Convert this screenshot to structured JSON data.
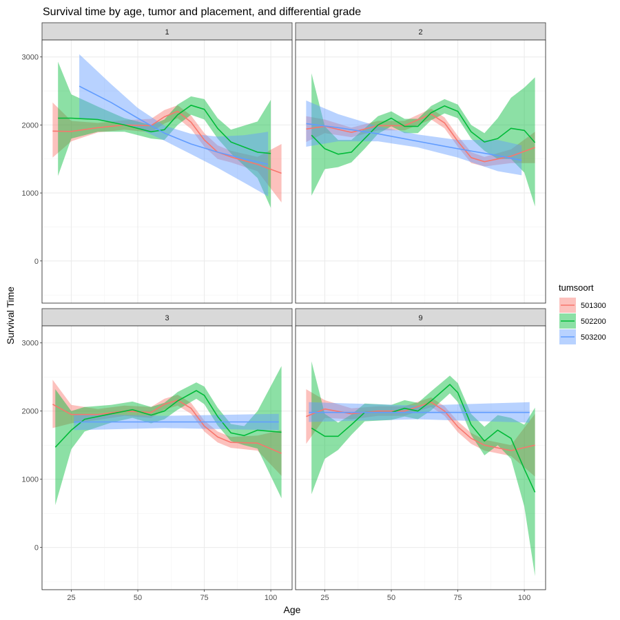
{
  "chart_data": {
    "type": "line",
    "title": "Survival time by age, tumor and placement, and differential grade",
    "xlabel": "Age",
    "ylabel": "Survival Time",
    "xlim": [
      14,
      108
    ],
    "ylim": [
      -620,
      3250
    ],
    "x_ticks": [
      25,
      50,
      75,
      100
    ],
    "y_ticks": [
      0,
      1000,
      2000,
      3000
    ],
    "grid": true,
    "legend": {
      "title": "tumsoort",
      "position": "right",
      "entries": [
        {
          "label": "501300",
          "color": "#F8766D"
        },
        {
          "label": "502200",
          "color": "#00BA38"
        },
        {
          "label": "503200",
          "color": "#619CFF"
        }
      ]
    },
    "panels": [
      {
        "label": "1",
        "series": [
          {
            "name": "501300",
            "color": "#F8766D",
            "points": [
              [
                18,
                1910,
                1520,
                2330
              ],
              [
                25,
                1905,
                1760,
                2060
              ],
              [
                35,
                1960,
                1890,
                2030
              ],
              [
                45,
                2000,
                1930,
                2070
              ],
              [
                55,
                1990,
                1890,
                2090
              ],
              [
                60,
                2120,
                2020,
                2220
              ],
              [
                65,
                2200,
                2100,
                2290
              ],
              [
                70,
                2040,
                1940,
                2140
              ],
              [
                75,
                1780,
                1680,
                1880
              ],
              [
                80,
                1600,
                1500,
                1700
              ],
              [
                85,
                1530,
                1450,
                1620
              ],
              [
                95,
                1420,
                1320,
                1530
              ],
              [
                104,
                1290,
                860,
                1720
              ]
            ]
          },
          {
            "name": "502200",
            "color": "#00BA38",
            "points": [
              [
                20,
                2100,
                1250,
                2930
              ],
              [
                25,
                2100,
                1800,
                2450
              ],
              [
                35,
                2080,
                1900,
                2270
              ],
              [
                45,
                2000,
                1900,
                2100
              ],
              [
                55,
                1900,
                1800,
                2000
              ],
              [
                60,
                1930,
                1780,
                2080
              ],
              [
                65,
                2150,
                2000,
                2300
              ],
              [
                70,
                2290,
                2150,
                2420
              ],
              [
                75,
                2230,
                2080,
                2380
              ],
              [
                80,
                1950,
                1800,
                2100
              ],
              [
                85,
                1750,
                1580,
                1930
              ],
              [
                95,
                1600,
                1220,
                2050
              ],
              [
                100,
                1580,
                780,
                2370
              ]
            ]
          },
          {
            "name": "503200",
            "color": "#619CFF",
            "points": [
              [
                28,
                2570,
                2100,
                3040
              ],
              [
                40,
                2330,
                2050,
                2600
              ],
              [
                50,
                2100,
                1950,
                2250
              ],
              [
                60,
                1880,
                1770,
                1990
              ],
              [
                70,
                1720,
                1570,
                1870
              ],
              [
                80,
                1600,
                1370,
                1830
              ],
              [
                90,
                1500,
                1150,
                1850
              ],
              [
                99,
                1420,
                950,
                1900
              ]
            ]
          }
        ]
      },
      {
        "label": "2",
        "series": [
          {
            "name": "501300",
            "color": "#F8766D",
            "points": [
              [
                18,
                1940,
                1750,
                2130
              ],
              [
                25,
                1980,
                1880,
                2080
              ],
              [
                35,
                1890,
                1820,
                1960
              ],
              [
                45,
                1990,
                1920,
                2060
              ],
              [
                55,
                1990,
                1920,
                2060
              ],
              [
                65,
                2160,
                2080,
                2240
              ],
              [
                70,
                2030,
                1950,
                2110
              ],
              [
                75,
                1760,
                1680,
                1840
              ],
              [
                80,
                1520,
                1440,
                1600
              ],
              [
                85,
                1460,
                1390,
                1530
              ],
              [
                95,
                1540,
                1440,
                1640
              ],
              [
                104,
                1670,
                1440,
                1900
              ]
            ]
          },
          {
            "name": "502200",
            "color": "#00BA38",
            "points": [
              [
                20,
                1850,
                960,
                2760
              ],
              [
                25,
                1650,
                1350,
                1980
              ],
              [
                30,
                1570,
                1380,
                1780
              ],
              [
                35,
                1600,
                1450,
                1780
              ],
              [
                40,
                1800,
                1650,
                1950
              ],
              [
                45,
                2000,
                1870,
                2130
              ],
              [
                50,
                2100,
                1980,
                2200
              ],
              [
                55,
                1980,
                1880,
                2090
              ],
              [
                60,
                1980,
                1880,
                2090
              ],
              [
                65,
                2180,
                2070,
                2280
              ],
              [
                70,
                2280,
                2170,
                2380
              ],
              [
                75,
                2200,
                2100,
                2300
              ],
              [
                80,
                1900,
                1800,
                2000
              ],
              [
                85,
                1750,
                1620,
                1880
              ],
              [
                90,
                1800,
                1500,
                2100
              ],
              [
                95,
                1950,
                1500,
                2400
              ],
              [
                100,
                1920,
                1300,
                2550
              ],
              [
                104,
                1740,
                800,
                2700
              ]
            ]
          },
          {
            "name": "503200",
            "color": "#619CFF",
            "points": [
              [
                18,
                2020,
                1680,
                2360
              ],
              [
                30,
                1960,
                1760,
                2160
              ],
              [
                45,
                1870,
                1760,
                1980
              ],
              [
                60,
                1760,
                1670,
                1860
              ],
              [
                75,
                1650,
                1520,
                1780
              ],
              [
                90,
                1550,
                1320,
                1780
              ],
              [
                99,
                1480,
                1260,
                1700
              ]
            ]
          }
        ]
      },
      {
        "label": "3",
        "series": [
          {
            "name": "501300",
            "color": "#F8766D",
            "points": [
              [
                18,
                2100,
                1750,
                2460
              ],
              [
                25,
                1950,
                1820,
                2090
              ],
              [
                35,
                1950,
                1870,
                2030
              ],
              [
                45,
                2000,
                1930,
                2080
              ],
              [
                55,
                1980,
                1900,
                2060
              ],
              [
                60,
                2100,
                2020,
                2180
              ],
              [
                65,
                2160,
                2080,
                2240
              ],
              [
                70,
                2040,
                1960,
                2120
              ],
              [
                75,
                1780,
                1700,
                1860
              ],
              [
                80,
                1620,
                1540,
                1700
              ],
              [
                85,
                1540,
                1460,
                1620
              ],
              [
                95,
                1530,
                1420,
                1640
              ],
              [
                104,
                1380,
                1050,
                1720
              ]
            ]
          },
          {
            "name": "502200",
            "color": "#00BA38",
            "points": [
              [
                19,
                1470,
                620,
                2320
              ],
              [
                25,
                1720,
                1440,
                2000
              ],
              [
                30,
                1880,
                1700,
                2060
              ],
              [
                40,
                1960,
                1830,
                2090
              ],
              [
                48,
                2020,
                1900,
                2140
              ],
              [
                55,
                1940,
                1820,
                2060
              ],
              [
                60,
                2000,
                1880,
                2120
              ],
              [
                65,
                2150,
                2020,
                2280
              ],
              [
                72,
                2300,
                2180,
                2420
              ],
              [
                75,
                2230,
                2100,
                2360
              ],
              [
                80,
                1920,
                1790,
                2050
              ],
              [
                85,
                1680,
                1560,
                1810
              ],
              [
                90,
                1640,
                1500,
                1780
              ],
              [
                95,
                1720,
                1450,
                2000
              ],
              [
                104,
                1690,
                720,
                2660
              ]
            ]
          },
          {
            "name": "503200",
            "color": "#619CFF",
            "points": [
              [
                26,
                1840,
                1720,
                1960
              ],
              [
                60,
                1840,
                1750,
                1930
              ],
              [
                103,
                1840,
                1720,
                1960
              ]
            ]
          }
        ]
      },
      {
        "label": "9",
        "series": [
          {
            "name": "501300",
            "color": "#F8766D",
            "points": [
              [
                18,
                1920,
                1520,
                2320
              ],
              [
                25,
                2030,
                1900,
                2160
              ],
              [
                35,
                1960,
                1880,
                2040
              ],
              [
                45,
                2000,
                1930,
                2070
              ],
              [
                55,
                2000,
                1930,
                2070
              ],
              [
                65,
                2130,
                2060,
                2200
              ],
              [
                70,
                2000,
                1930,
                2070
              ],
              [
                75,
                1770,
                1690,
                1850
              ],
              [
                80,
                1600,
                1520,
                1680
              ],
              [
                85,
                1500,
                1420,
                1580
              ],
              [
                95,
                1420,
                1340,
                1500
              ],
              [
                104,
                1500,
                1040,
                1960
              ]
            ]
          },
          {
            "name": "502200",
            "color": "#00BA38",
            "points": [
              [
                20,
                1750,
                780,
                2730
              ],
              [
                25,
                1630,
                1300,
                1960
              ],
              [
                30,
                1630,
                1430,
                1830
              ],
              [
                35,
                1800,
                1650,
                1950
              ],
              [
                40,
                1980,
                1850,
                2110
              ],
              [
                50,
                1980,
                1870,
                2090
              ],
              [
                55,
                2040,
                1920,
                2160
              ],
              [
                60,
                2000,
                1880,
                2120
              ],
              [
                65,
                2150,
                2010,
                2290
              ],
              [
                72,
                2390,
                2260,
                2520
              ],
              [
                75,
                2270,
                2130,
                2410
              ],
              [
                80,
                1800,
                1650,
                1960
              ],
              [
                85,
                1560,
                1350,
                1770
              ],
              [
                90,
                1720,
                1500,
                1940
              ],
              [
                95,
                1600,
                1300,
                1900
              ],
              [
                100,
                1150,
                600,
                1800
              ],
              [
                104,
                810,
                -420,
                2050
              ]
            ]
          },
          {
            "name": "503200",
            "color": "#619CFF",
            "points": [
              [
                19,
                1980,
                1840,
                2130
              ],
              [
                60,
                1980,
                1880,
                2080
              ],
              [
                102,
                1980,
                1830,
                2130
              ]
            ]
          }
        ]
      }
    ]
  }
}
